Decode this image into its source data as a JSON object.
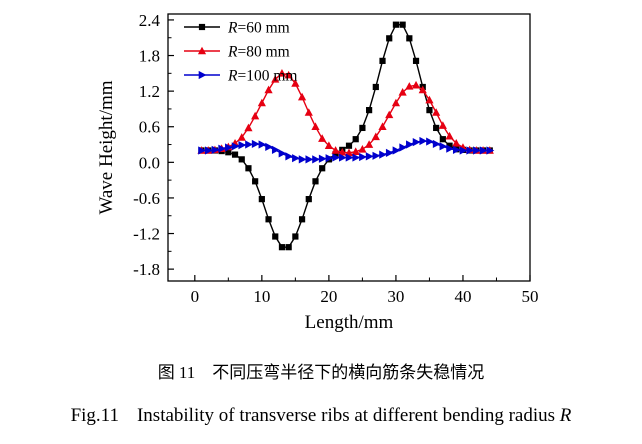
{
  "figure": {
    "caption_zh": "图 11　不同压弯半径下的横向筋条失稳情况",
    "caption_en_prefix": "Fig.11",
    "caption_en_body": "Instability of transverse ribs at different bending radius",
    "caption_en_italic": "R"
  },
  "chart_data": {
    "type": "line",
    "title": "",
    "xlabel": "Length/mm",
    "ylabel": "Wave Height/mm",
    "xlim": [
      -4,
      50
    ],
    "ylim": [
      -2.0,
      2.5
    ],
    "xticks": [
      0,
      10,
      20,
      30,
      40,
      50
    ],
    "yticks": [
      -1.8,
      -1.2,
      -0.6,
      0,
      0.6,
      1.2,
      1.8,
      2.4
    ],
    "x_minor_step": 5,
    "y_minor_step": 0.3,
    "grid": false,
    "legend_position": "top-left",
    "x": [
      1,
      2,
      3,
      4,
      5,
      6,
      7,
      8,
      9,
      10,
      11,
      12,
      13,
      14,
      15,
      16,
      17,
      18,
      19,
      20,
      21,
      22,
      23,
      24,
      25,
      26,
      27,
      28,
      29,
      30,
      31,
      32,
      33,
      34,
      35,
      36,
      37,
      38,
      39,
      40,
      41,
      42,
      43,
      44
    ],
    "series": [
      {
        "name": "R=60 mm",
        "color": "#000000",
        "marker": "square",
        "values": [
          0.2,
          0.2,
          0.2,
          0.19,
          0.17,
          0.13,
          0.05,
          -0.1,
          -0.32,
          -0.62,
          -0.96,
          -1.25,
          -1.43,
          -1.43,
          -1.25,
          -0.96,
          -0.62,
          -0.32,
          -0.1,
          0.05,
          0.14,
          0.21,
          0.28,
          0.39,
          0.58,
          0.88,
          1.27,
          1.71,
          2.09,
          2.32,
          2.32,
          2.09,
          1.71,
          1.27,
          0.88,
          0.58,
          0.39,
          0.28,
          0.22,
          0.21,
          0.2,
          0.2,
          0.2,
          0.2
        ]
      },
      {
        "name": "R=80 mm",
        "color": "#e60012",
        "marker": "triangle-up",
        "values": [
          0.2,
          0.2,
          0.21,
          0.23,
          0.26,
          0.32,
          0.42,
          0.58,
          0.78,
          1.0,
          1.22,
          1.4,
          1.5,
          1.47,
          1.33,
          1.1,
          0.84,
          0.6,
          0.4,
          0.28,
          0.2,
          0.17,
          0.16,
          0.18,
          0.22,
          0.3,
          0.43,
          0.6,
          0.8,
          1.0,
          1.18,
          1.28,
          1.3,
          1.22,
          1.05,
          0.84,
          0.62,
          0.44,
          0.32,
          0.25,
          0.21,
          0.2,
          0.2,
          0.2
        ]
      },
      {
        "name": "R=100 mm",
        "color": "#0000cd",
        "marker": "triangle-right",
        "values": [
          0.2,
          0.2,
          0.21,
          0.23,
          0.25,
          0.27,
          0.29,
          0.3,
          0.31,
          0.3,
          0.26,
          0.21,
          0.15,
          0.1,
          0.07,
          0.05,
          0.05,
          0.05,
          0.06,
          0.07,
          0.08,
          0.08,
          0.08,
          0.08,
          0.09,
          0.1,
          0.11,
          0.13,
          0.16,
          0.2,
          0.25,
          0.3,
          0.34,
          0.36,
          0.35,
          0.31,
          0.27,
          0.23,
          0.21,
          0.2,
          0.2,
          0.2,
          0.2,
          0.2
        ]
      }
    ]
  }
}
